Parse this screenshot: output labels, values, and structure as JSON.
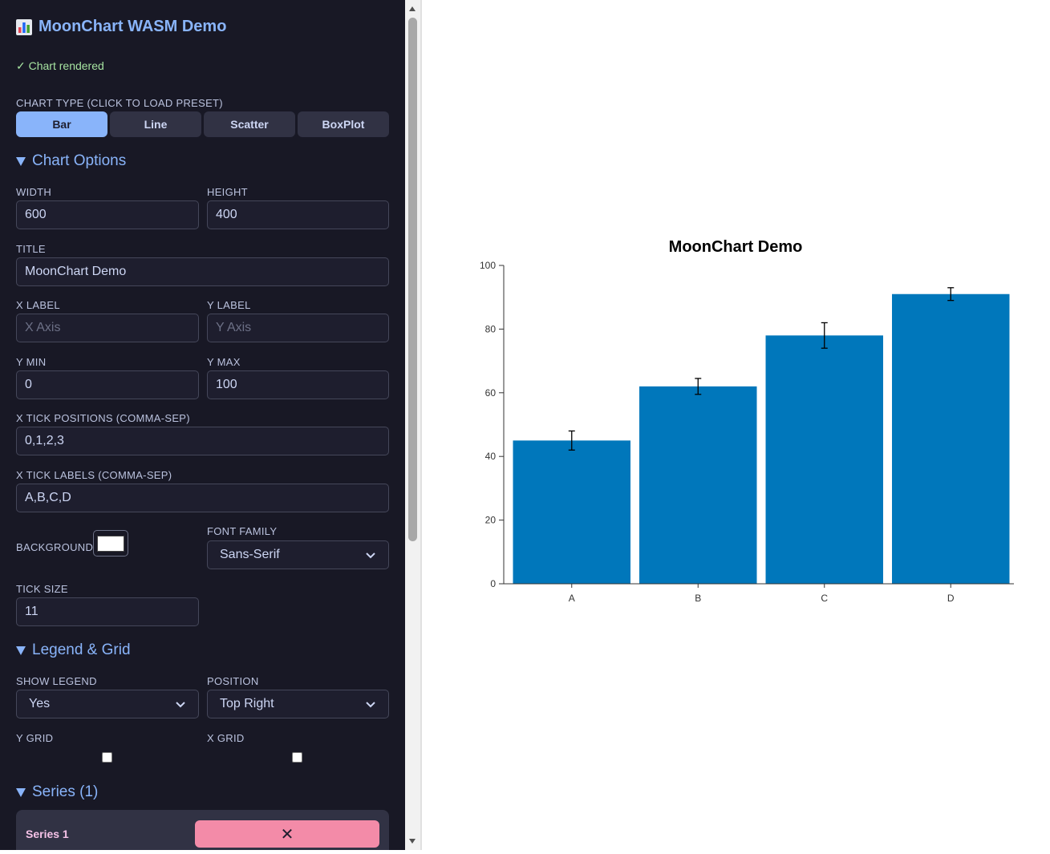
{
  "app": {
    "title": "MoonChart WASM Demo",
    "status": "✓ Chart rendered"
  },
  "chart_type": {
    "label": "Chart type (click to load preset)",
    "buttons": [
      "Bar",
      "Line",
      "Scatter",
      "BoxPlot"
    ],
    "active": "Bar"
  },
  "chart_options": {
    "heading": "Chart Options",
    "width_label": "Width",
    "width_value": "600",
    "height_label": "Height",
    "height_value": "400",
    "title_label": "Title",
    "title_value": "MoonChart Demo",
    "xlabel_label": "X Label",
    "xlabel_placeholder": "X Axis",
    "ylabel_label": "Y Label",
    "ylabel_placeholder": "Y Axis",
    "ymin_label": "Y Min",
    "ymin_value": "0",
    "ymax_label": "Y Max",
    "ymax_value": "100",
    "xtickpos_label": "X Tick Positions (comma-sep)",
    "xtickpos_value": "0,1,2,3",
    "xticklabels_label": "X Tick Labels (comma-sep)",
    "xticklabels_value": "A,B,C,D",
    "background_label": "Background",
    "background_color": "#ffffff",
    "fontfamily_label": "Font Family",
    "fontfamily_value": "Sans-Serif",
    "ticksize_label": "Tick Size",
    "ticksize_value": "11"
  },
  "legend_grid": {
    "heading": "Legend & Grid",
    "show_legend_label": "Show Legend",
    "show_legend_value": "Yes",
    "position_label": "Position",
    "position_value": "Top Right",
    "ygrid_label": "Y Grid",
    "xgrid_label": "X Grid"
  },
  "series_section": {
    "heading": "Series (1)",
    "items": [
      {
        "name": "Series 1",
        "remove_label": "✕"
      }
    ]
  },
  "chart_data": {
    "type": "bar",
    "title": "MoonChart Demo",
    "categories": [
      "A",
      "B",
      "C",
      "D"
    ],
    "values": [
      45,
      62,
      78,
      91
    ],
    "error": [
      3,
      2.5,
      4,
      2
    ],
    "ylim": [
      0,
      100
    ],
    "yticks": [
      0,
      20,
      40,
      60,
      80,
      100
    ],
    "xlabel": "",
    "ylabel": "",
    "bar_color": "#0077bb",
    "grid": false
  }
}
